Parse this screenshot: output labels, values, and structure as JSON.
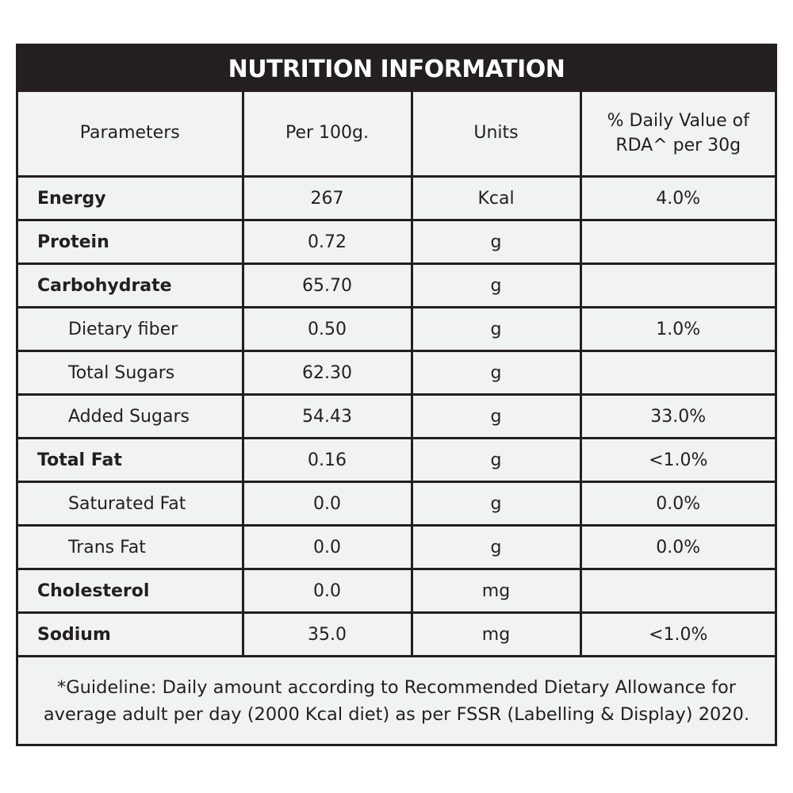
{
  "title": "NUTRITION INFORMATION",
  "columns": {
    "parameters": "Parameters",
    "per100g": "Per 100g.",
    "units": "Units",
    "daily_value_line1": "% Daily Value of",
    "daily_value_line2": "RDA^ per 30g"
  },
  "rows": [
    {
      "parameter": "Energy",
      "level": "main",
      "per100g": "267",
      "unit": "Kcal",
      "daily_value": "4.0%"
    },
    {
      "parameter": "Protein",
      "level": "main",
      "per100g": "0.72",
      "unit": "g",
      "daily_value": ""
    },
    {
      "parameter": "Carbohydrate",
      "level": "main",
      "per100g": "65.70",
      "unit": "g",
      "daily_value": ""
    },
    {
      "parameter": "Dietary fiber",
      "level": "sub",
      "per100g": "0.50",
      "unit": "g",
      "daily_value": "1.0%"
    },
    {
      "parameter": "Total Sugars",
      "level": "sub",
      "per100g": "62.30",
      "unit": "g",
      "daily_value": ""
    },
    {
      "parameter": "Added Sugars",
      "level": "sub",
      "per100g": "54.43",
      "unit": "g",
      "daily_value": "33.0%"
    },
    {
      "parameter": "Total Fat",
      "level": "main",
      "per100g": "0.16",
      "unit": "g",
      "daily_value": "<1.0%"
    },
    {
      "parameter": "Saturated Fat",
      "level": "sub",
      "per100g": "0.0",
      "unit": "g",
      "daily_value": "0.0%"
    },
    {
      "parameter": "Trans Fat",
      "level": "sub",
      "per100g": "0.0",
      "unit": "g",
      "daily_value": "0.0%"
    },
    {
      "parameter": "Cholesterol",
      "level": "main",
      "per100g": "0.0",
      "unit": "mg",
      "daily_value": ""
    },
    {
      "parameter": "Sodium",
      "level": "main",
      "per100g": "35.0",
      "unit": "mg",
      "daily_value": "<1.0%"
    }
  ],
  "footnote": {
    "line1": "*Guideline: Daily amount according to Recommended Dietary Allowance for",
    "line2": "average adult per day (2000 Kcal diet) as per FSSR (Labelling & Display) 2020."
  }
}
